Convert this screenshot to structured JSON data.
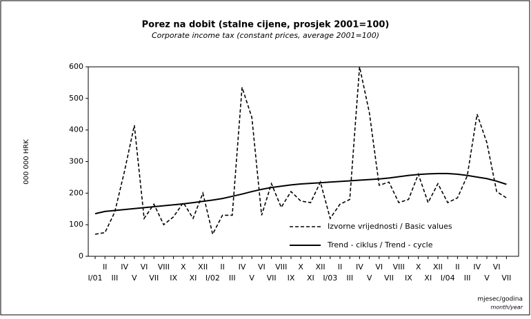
{
  "chart_data": {
    "type": "line",
    "title": "Porez na dobit (stalne cijene, prosjek 2001=100)",
    "subtitle": "Corporate income tax (constant prices, average 2001=100)",
    "y_label": "000 000 HRK",
    "x_label": "mjesec/godina",
    "x_label_en": "month/year",
    "categories": [
      "I/01",
      "II",
      "III",
      "IV",
      "V",
      "VI",
      "VII",
      "VIII",
      "IX",
      "X",
      "XI",
      "XII",
      "I/02",
      "II",
      "III",
      "IV",
      "V",
      "VI",
      "VII",
      "VIII",
      "IX",
      "X",
      "XI",
      "XII",
      "I/03",
      "II",
      "III",
      "IV",
      "V",
      "VI",
      "VII",
      "VIII",
      "IX",
      "X",
      "XI",
      "XII",
      "I/04",
      "II",
      "III",
      "IV",
      "V",
      "VI",
      "VII"
    ],
    "series": [
      {
        "name": "Izvorne vrijednosti / Basic values",
        "color": "#000000",
        "dash": true,
        "values": [
          70,
          75,
          140,
          270,
          415,
          120,
          165,
          100,
          125,
          170,
          120,
          200,
          70,
          130,
          130,
          535,
          440,
          130,
          230,
          155,
          205,
          175,
          170,
          235,
          120,
          165,
          180,
          600,
          455,
          225,
          235,
          170,
          180,
          260,
          170,
          230,
          170,
          185,
          255,
          450,
          360,
          205,
          185
        ]
      },
      {
        "name": "Trend - ciklus / Trend - cycle",
        "color": "#000000",
        "dash": false,
        "values": [
          135,
          142,
          145,
          148,
          151,
          154,
          157,
          160,
          163,
          166,
          170,
          174,
          178,
          183,
          190,
          197,
          205,
          212,
          218,
          222,
          226,
          229,
          231,
          233,
          235,
          237,
          239,
          241,
          243,
          245,
          248,
          252,
          256,
          259,
          261,
          262,
          262,
          260,
          256,
          251,
          246,
          238,
          228
        ]
      }
    ],
    "ylim": [
      0,
      600
    ],
    "yticks": [
      0,
      100,
      200,
      300,
      400,
      500,
      600
    ],
    "legend": "lower-right"
  }
}
